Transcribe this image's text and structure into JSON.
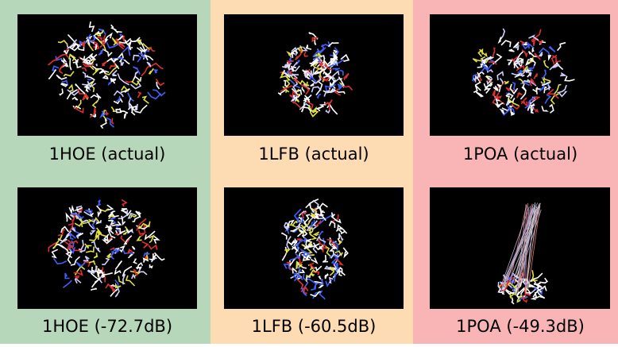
{
  "columns": [
    {
      "labels": [
        "1HOE (actual)",
        "1HOE (-72.7dB)"
      ]
    },
    {
      "labels": [
        "1LFB (actual)",
        "1LFB (-60.5dB)"
      ]
    },
    {
      "labels": [
        "1POA (actual)",
        "1POA (-49.3dB)"
      ]
    }
  ]
}
